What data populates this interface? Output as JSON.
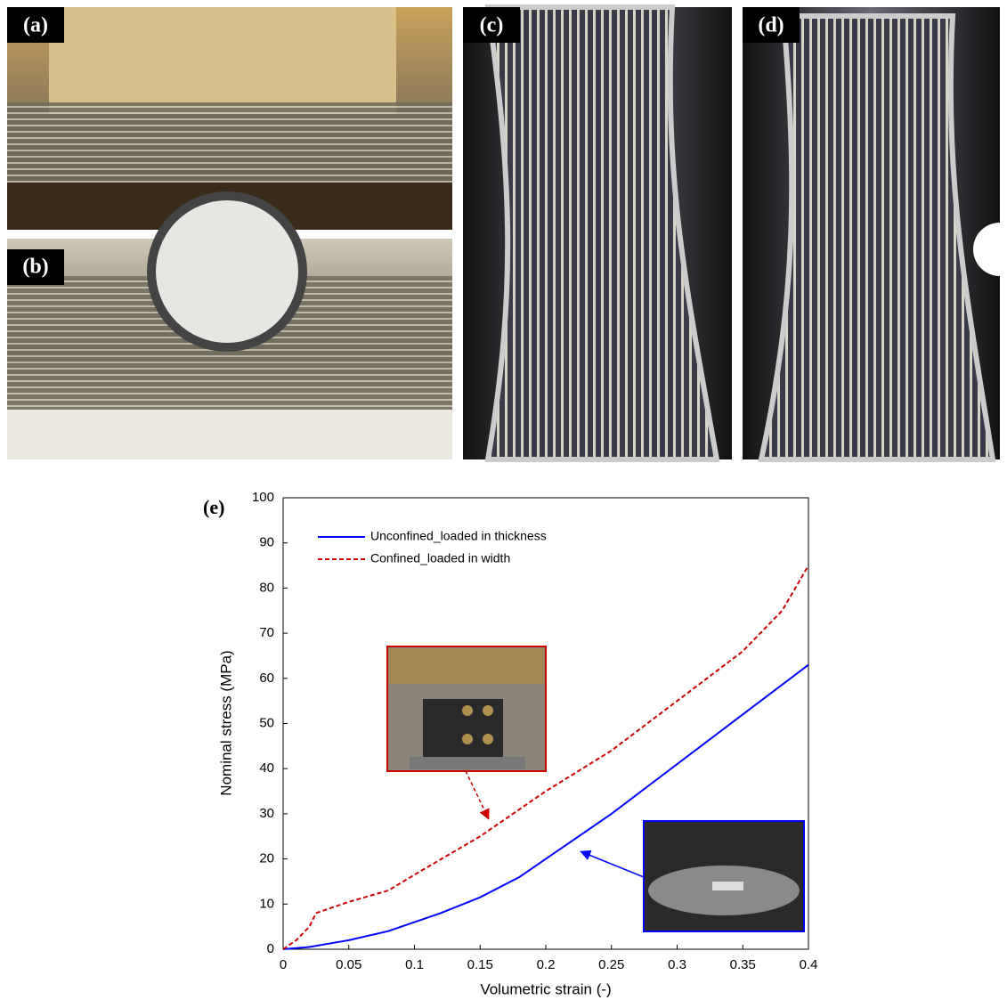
{
  "panels": [
    "(a)",
    "(b)",
    "(c)",
    "(d)"
  ],
  "chart_data": {
    "type": "line",
    "label": "(e)",
    "xlabel": "Volumetric strain (-)",
    "ylabel": "Nominal stress (MPa)",
    "xlim": [
      0,
      0.4
    ],
    "xticks": [
      0,
      0.05,
      0.1,
      0.15,
      0.2,
      0.25,
      0.3,
      0.35,
      0.4
    ],
    "ylim": [
      0,
      100
    ],
    "yticks": [
      0,
      10,
      20,
      30,
      40,
      50,
      60,
      70,
      80,
      90,
      100
    ],
    "legend": "upper left",
    "series": [
      {
        "name": "Unconfined_loaded in thickness",
        "color": "#0000ff",
        "dashed": false,
        "x": [
          0,
          0.02,
          0.03,
          0.05,
          0.08,
          0.1,
          0.12,
          0.15,
          0.18,
          0.2,
          0.25,
          0.3,
          0.35,
          0.4
        ],
        "values": [
          0,
          0.5,
          1,
          2,
          4,
          6,
          8,
          11.5,
          16,
          20,
          30,
          41,
          52,
          63
        ]
      },
      {
        "name": "Confined_loaded in width",
        "color": "#cc0000",
        "dashed": true,
        "x": [
          0,
          0.01,
          0.02,
          0.025,
          0.03,
          0.05,
          0.08,
          0.1,
          0.15,
          0.2,
          0.25,
          0.3,
          0.35,
          0.38,
          0.4
        ],
        "values": [
          0,
          2,
          5,
          8,
          8.5,
          10.5,
          13,
          16.5,
          25,
          35,
          44,
          55,
          66,
          75,
          85
        ]
      }
    ]
  }
}
